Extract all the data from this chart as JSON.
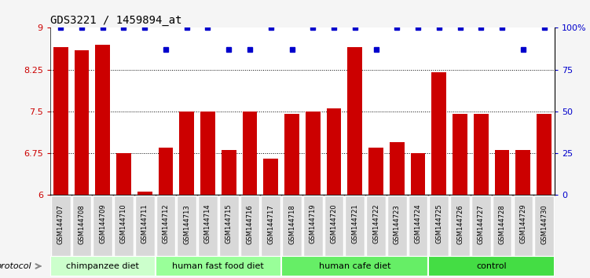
{
  "title": "GDS3221 / 1459894_at",
  "samples": [
    "GSM144707",
    "GSM144708",
    "GSM144709",
    "GSM144710",
    "GSM144711",
    "GSM144712",
    "GSM144713",
    "GSM144714",
    "GSM144715",
    "GSM144716",
    "GSM144717",
    "GSM144718",
    "GSM144719",
    "GSM144720",
    "GSM144721",
    "GSM144722",
    "GSM144723",
    "GSM144724",
    "GSM144725",
    "GSM144726",
    "GSM144727",
    "GSM144728",
    "GSM144729",
    "GSM144730"
  ],
  "bar_values": [
    8.65,
    8.6,
    8.7,
    6.75,
    6.05,
    6.85,
    7.5,
    7.5,
    6.8,
    7.5,
    6.65,
    7.45,
    7.5,
    7.55,
    8.65,
    6.85,
    6.95,
    6.75,
    8.2,
    7.45,
    7.45,
    6.8,
    6.8,
    7.45
  ],
  "percentile_values": [
    100,
    100,
    100,
    100,
    100,
    87,
    100,
    100,
    87,
    87,
    100,
    87,
    100,
    100,
    100,
    87,
    100,
    100,
    100,
    100,
    100,
    100,
    87,
    100
  ],
  "groups": [
    {
      "label": "chimpanzee diet",
      "start": 0,
      "end": 5,
      "color": "#ccffcc"
    },
    {
      "label": "human fast food diet",
      "start": 5,
      "end": 11,
      "color": "#99ff99"
    },
    {
      "label": "human cafe diet",
      "start": 11,
      "end": 18,
      "color": "#66ee66"
    },
    {
      "label": "control",
      "start": 18,
      "end": 24,
      "color": "#44dd44"
    }
  ],
  "bar_color": "#cc0000",
  "percentile_color": "#0000cc",
  "ylim": [
    6.0,
    9.0
  ],
  "yticks": [
    6.0,
    6.75,
    7.5,
    8.25,
    9.0
  ],
  "ytick_labels": [
    "6",
    "6.75",
    "7.5",
    "8.25",
    "9"
  ],
  "right_yticks": [
    0,
    25,
    50,
    75,
    100
  ],
  "right_ytick_labels": [
    "0",
    "25",
    "50",
    "75",
    "100%"
  ],
  "hlines": [
    6.75,
    7.5,
    8.25
  ],
  "fig_bg": "#f5f5f5"
}
